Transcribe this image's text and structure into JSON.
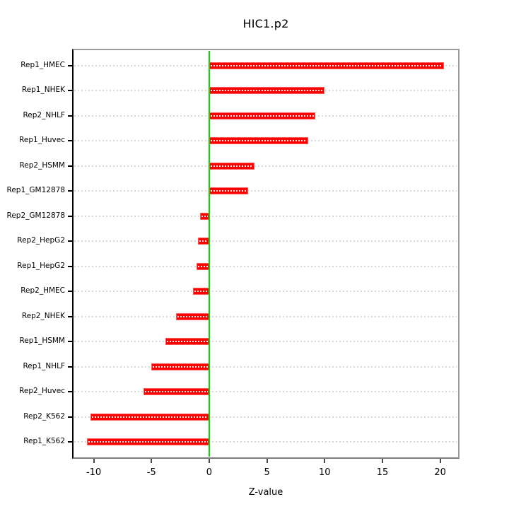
{
  "chart_data": {
    "type": "bar",
    "orientation": "horizontal",
    "title": "HIC1.p2",
    "xlabel": "Z-value",
    "ylabel": "",
    "categories": [
      "Rep1_HMEC",
      "Rep1_NHEK",
      "Rep2_NHLF",
      "Rep1_Huvec",
      "Rep2_HSMM",
      "Rep1_GM12878",
      "Rep2_GM12878",
      "Rep2_HepG2",
      "Rep1_HepG2",
      "Rep2_HMEC",
      "Rep2_NHEK",
      "Rep1_HSMM",
      "Rep1_NHLF",
      "Rep2_Huvec",
      "Rep2_K562",
      "Rep1_K562"
    ],
    "values": [
      20.3,
      10.0,
      9.2,
      8.6,
      3.9,
      3.4,
      -0.8,
      -1.0,
      -1.1,
      -1.4,
      -2.9,
      -3.8,
      -5.0,
      -5.7,
      -10.3,
      -10.6
    ],
    "x_ticks": [
      -10,
      -5,
      0,
      5,
      10,
      15,
      20
    ],
    "x_tick_labels": [
      "-10",
      "-5",
      "0",
      "5",
      "10",
      "15",
      "20"
    ],
    "xlim": [
      -11.75,
      21.55
    ],
    "grid": true,
    "grid_style": "dotted",
    "grid_color": "#d8d8d8",
    "legend_position": "none",
    "bar_color": "#ff0000",
    "bar_stripe_color": "#ffffff",
    "zero_line_color": "#00e000",
    "zero_line_x": 0
  }
}
